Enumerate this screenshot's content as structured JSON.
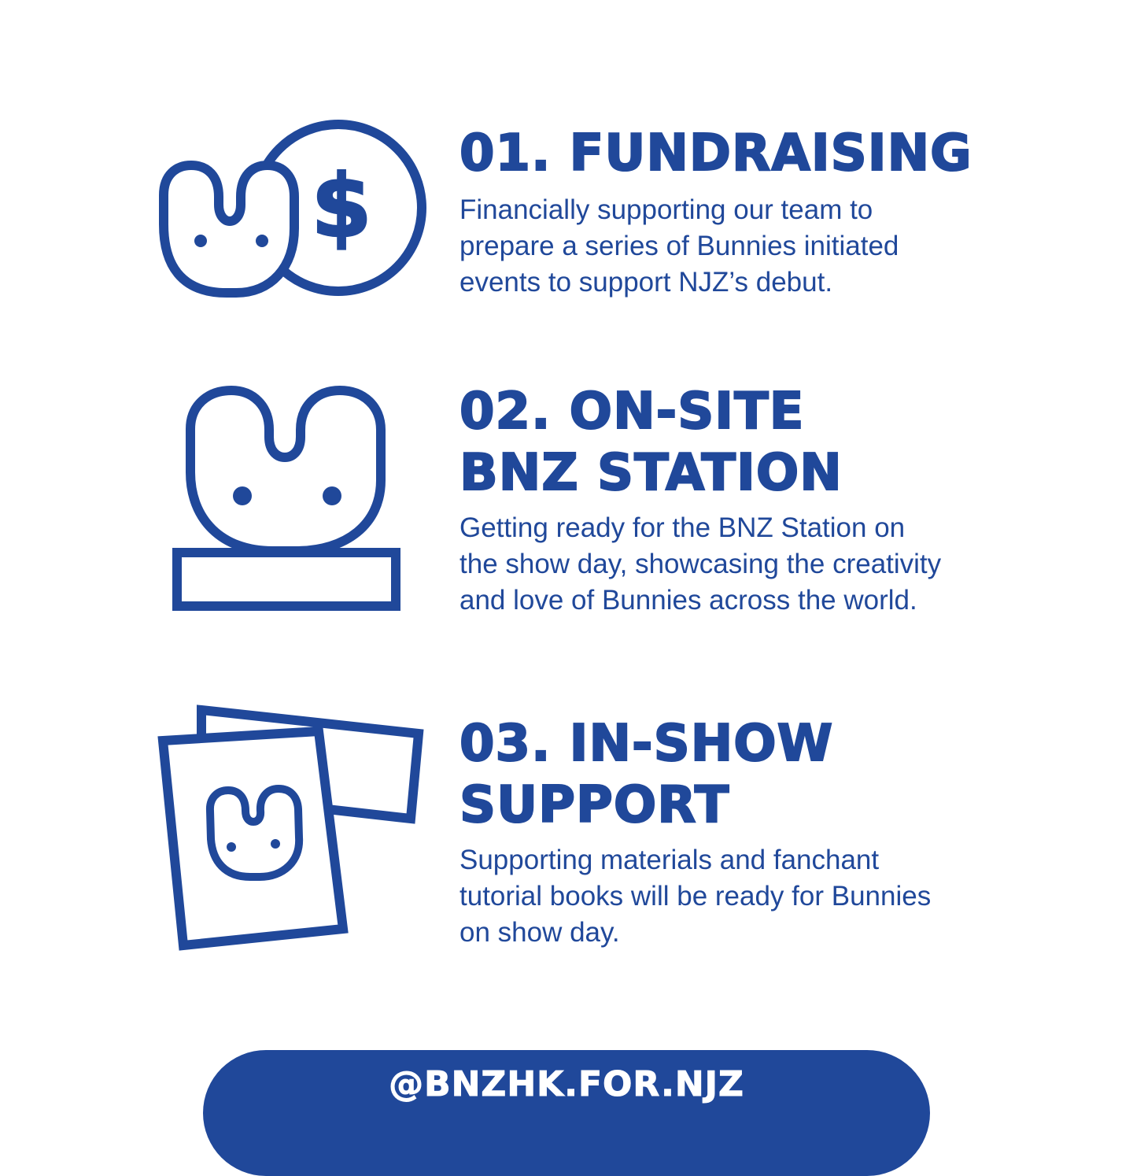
{
  "sections": [
    {
      "heading_lines": [
        "01. FUNDRAISING"
      ],
      "desc_lines": [
        "Financially supporting our team to",
        "prepare a series of Bunnies initiated",
        "events to support NJZ’s debut."
      ],
      "icon": "bunny-coin-icon"
    },
    {
      "heading_lines": [
        "02. ON-SITE",
        "BNZ STATION"
      ],
      "desc_lines": [
        "Getting ready for the BNZ Station on",
        "the show day, showcasing the creativity",
        "and love of Bunnies across the world."
      ],
      "icon": "bunny-station-icon"
    },
    {
      "heading_lines": [
        "03. IN-SHOW",
        "SUPPORT"
      ],
      "desc_lines": [
        "Supporting materials and fanchant",
        "tutorial books will be ready for Bunnies",
        "on show day."
      ],
      "icon": "bunny-cards-icon"
    }
  ],
  "footer": {
    "handle": "@BNZHK.FOR.NJZ"
  },
  "colors": {
    "brand_blue": "#20489a",
    "background": "#ffffff"
  }
}
